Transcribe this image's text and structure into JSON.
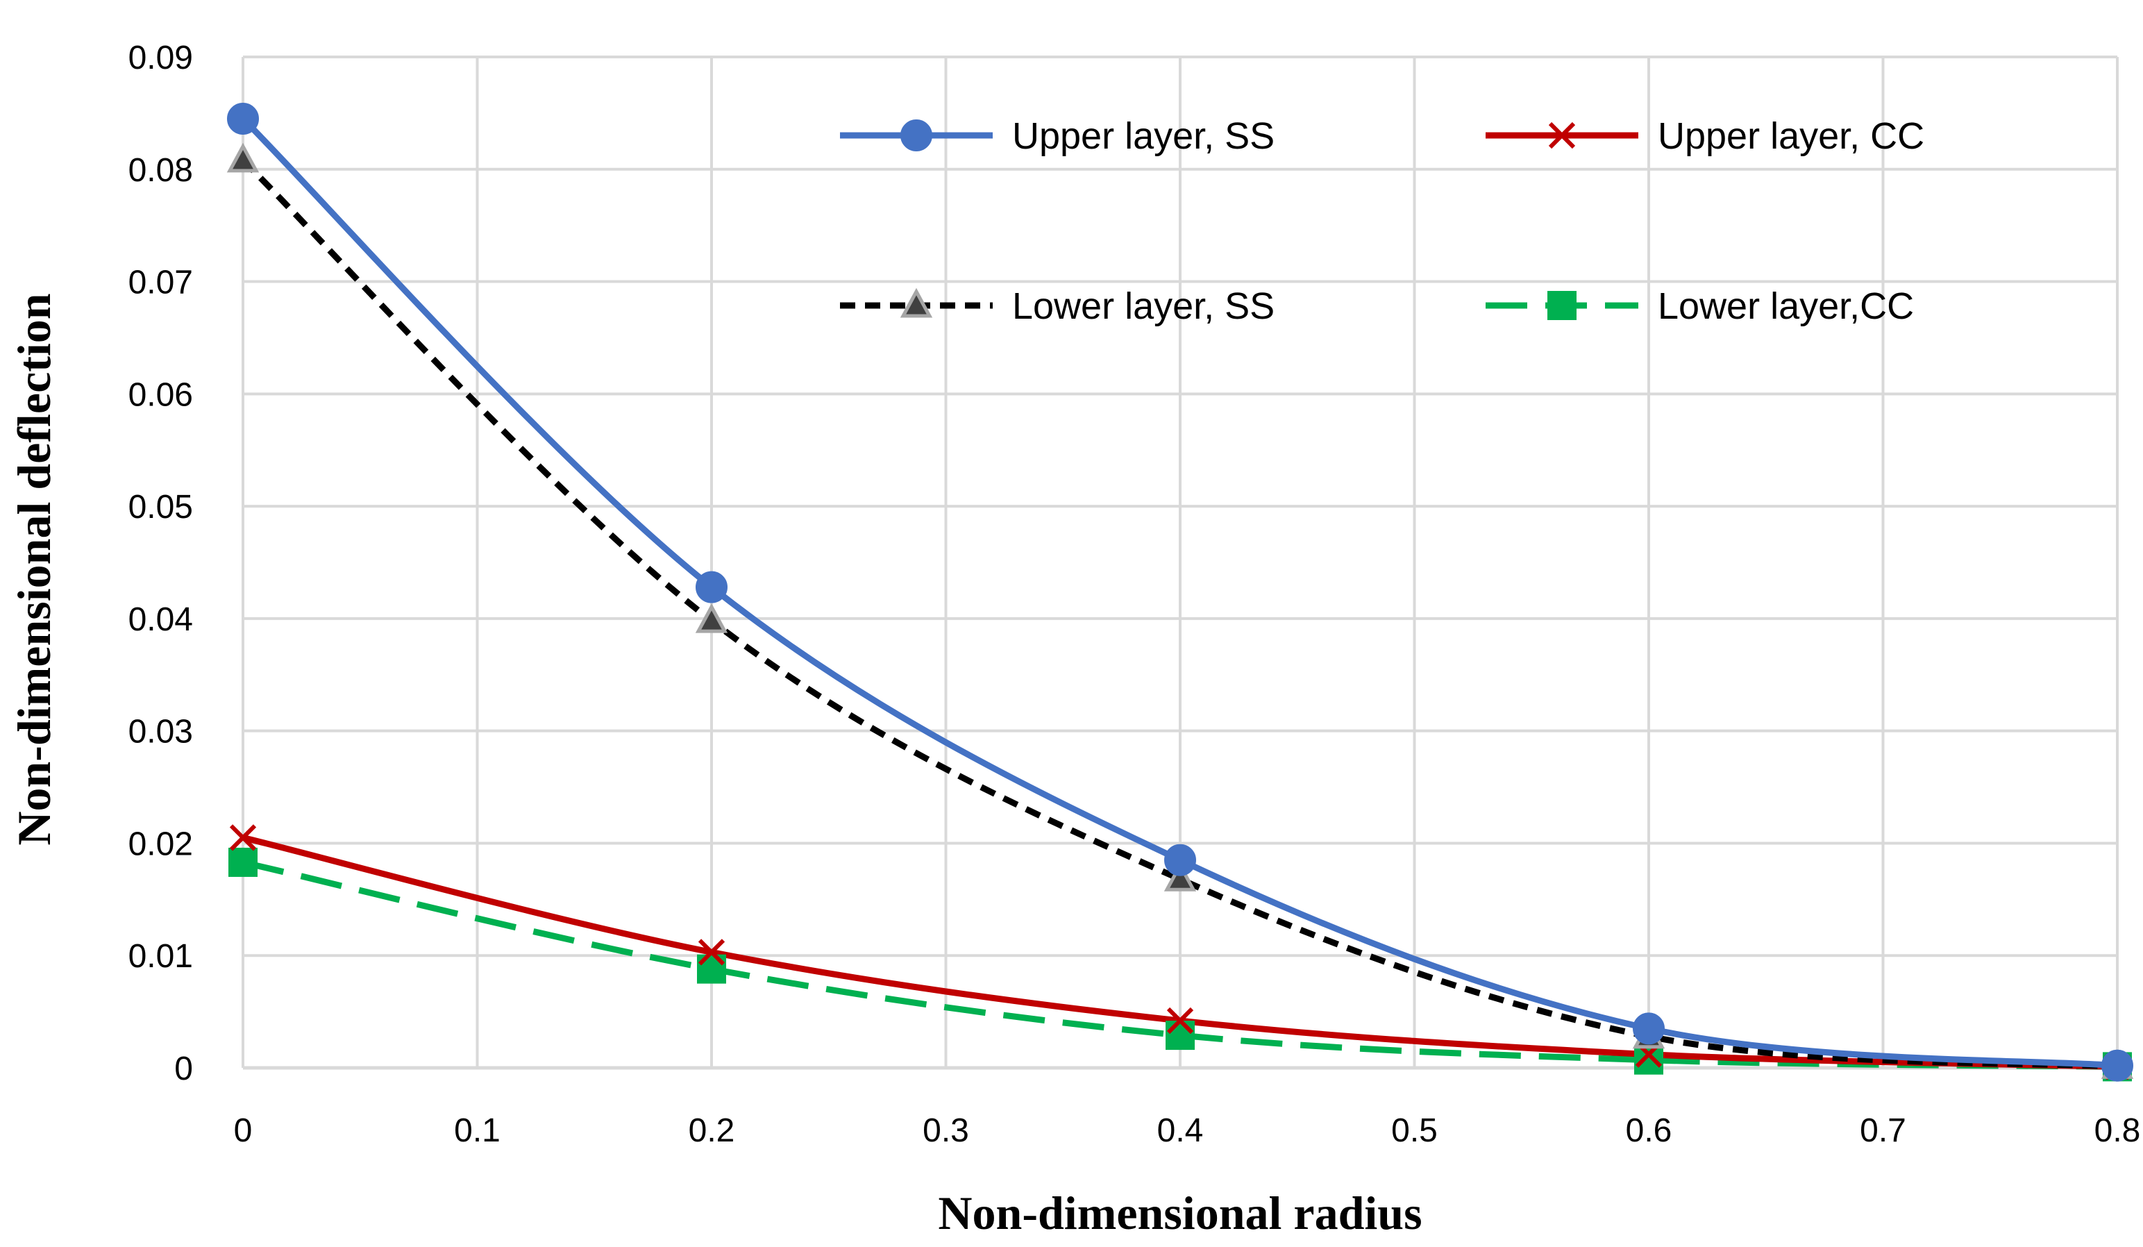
{
  "chart_data": {
    "type": "line",
    "title": "",
    "xlabel": "Non-dimensional radius",
    "ylabel": "Non-dimensional deflection",
    "xlim": [
      0,
      0.8
    ],
    "ylim": [
      0,
      0.09
    ],
    "grid": true,
    "x_ticks": [
      "0",
      "0.1",
      "0.2",
      "0.3",
      "0.4",
      "0.5",
      "0.6",
      "0.7",
      "0.8"
    ],
    "y_ticks": [
      "0",
      "0.01",
      "0.02",
      "0.03",
      "0.04",
      "0.05",
      "0.06",
      "0.07",
      "0.08",
      "0.09"
    ],
    "legend_position": "top-right",
    "series": [
      {
        "name": "Upper layer, SS",
        "color": "#4472C4",
        "marker": "circle",
        "line_style": "solid",
        "x": [
          0,
          0.2,
          0.4,
          0.6,
          0.8
        ],
        "values": [
          0.0845,
          0.0428,
          0.0185,
          0.0035,
          0.0002
        ]
      },
      {
        "name": "Upper layer, CC",
        "color": "#C00000",
        "marker": "x",
        "line_style": "solid",
        "x": [
          0,
          0.2,
          0.4,
          0.6,
          0.8
        ],
        "values": [
          0.0205,
          0.0103,
          0.0042,
          0.0012,
          0.0001
        ]
      },
      {
        "name": "Lower layer, SS",
        "color": "#000000",
        "marker": "triangle",
        "marker_fill": "#404040",
        "marker_stroke": "#A6A6A6",
        "line_style": "dashed",
        "x": [
          0,
          0.2,
          0.4,
          0.6,
          0.8
        ],
        "values": [
          0.0808,
          0.0398,
          0.0168,
          0.0028,
          0.0001
        ]
      },
      {
        "name": "Lower layer,CC",
        "color": "#00B050",
        "marker": "square",
        "line_style": "long-dash",
        "x": [
          0,
          0.2,
          0.4,
          0.6,
          0.8
        ],
        "values": [
          0.0183,
          0.0088,
          0.0029,
          0.0007,
          0.0001
        ]
      }
    ]
  }
}
